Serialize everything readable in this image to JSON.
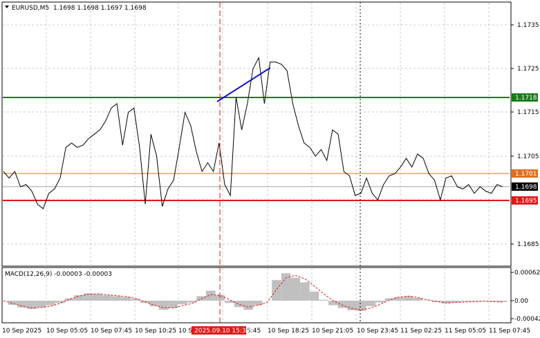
{
  "header": {
    "symbol": "EURUSD,M5",
    "ohlc": "1.1698 1.1698 1.1697 1.1698",
    "dropdown_icon": "triangle-down-icon"
  },
  "indicator": {
    "title": "MACD(12,26,9) -0.00003 -0.00003",
    "axis_labels": [
      "0.00062",
      "0.00",
      "-0.00042"
    ]
  },
  "price_axis": {
    "labels": [
      "1.1735",
      "1.1725",
      "1.1715",
      "1.1705",
      "1.1685"
    ]
  },
  "levels": [
    {
      "label": "1.1718",
      "color": "#1a7a1a"
    },
    {
      "label": "1.1701",
      "color": "#e07020"
    },
    {
      "label": "1.1698",
      "color": "#000000"
    },
    {
      "label": "1.1695",
      "color": "#e01818"
    }
  ],
  "time_axis": {
    "labels": [
      "10 Sep 2025",
      "10 Sep 05:05",
      "10 Sep 07:45",
      "10 Sep 10:25",
      "10 S",
      "5:45",
      "10 Sep 18:25",
      "10 Sep 21:05",
      "10 Sep 23:45",
      "11 Sep 02:25",
      "11 Sep 05:05",
      "11 Sep 07:45"
    ],
    "highlight": "2025.09.10 15:30"
  },
  "colors": {
    "green_level": "#1a7a1a",
    "orange_level": "#e07020",
    "red_level": "#e01818",
    "trendline": "#1010c8",
    "crosshair": "#e01818",
    "macd_hist": "#c0c0c0",
    "macd_signal": "#e01818"
  },
  "chart_data": {
    "type": "line",
    "series": [
      {
        "values": [
          1.17015,
          1.17,
          1.17015,
          1.1698,
          1.16985,
          1.1697,
          1.1694,
          1.1693,
          1.16965,
          1.16975,
          1.17,
          1.1707,
          1.1708,
          1.1707,
          1.17075,
          1.1709,
          1.171,
          1.1711,
          1.1713,
          1.1716,
          1.1717,
          1.17075,
          1.1715,
          1.1716,
          1.1707,
          1.1694,
          1.171,
          1.1705,
          1.16935,
          1.16975,
          1.16995,
          1.1707,
          1.1715,
          1.1712,
          1.1706,
          1.17015,
          1.17035,
          1.17015,
          1.1708,
          1.16985,
          1.1696,
          1.17185,
          1.1711,
          1.1717,
          1.1725,
          1.17275,
          1.1717,
          1.17265,
          1.17265,
          1.1726,
          1.17245,
          1.1717,
          1.1712,
          1.1708,
          1.1707,
          1.1705,
          1.17065,
          1.1704,
          1.1711,
          1.171,
          1.17015,
          1.17005,
          1.1696,
          1.16965,
          1.17,
          1.16965,
          1.1695,
          1.16985,
          1.17005,
          1.1701,
          1.17025,
          1.17045,
          1.17025,
          1.17055,
          1.17045,
          1.1701,
          1.16995,
          1.1695,
          1.17,
          1.17005,
          1.1698,
          1.16975,
          1.16985,
          1.16965,
          1.1698,
          1.1697,
          1.16965,
          1.16985,
          1.1698
        ]
      }
    ]
  },
  "macd_data": {
    "hist": [
      0,
      -9e-05,
      -0.00015,
      -0.00018,
      -0.00015,
      -0.0001,
      -5e-05,
      5e-05,
      0.00012,
      0.00016,
      0.00015,
      0.00012,
      0.0001,
      8e-05,
      4e-05,
      -5e-05,
      -0.00012,
      -0.0002,
      -0.00016,
      -8e-05,
      -4e-05,
      0.0001,
      0.00022,
      0.00012,
      -5e-05,
      -0.00014,
      -0.0002,
      -0.0001,
      0,
      0.00045,
      0.0006,
      0.0005,
      0.0004,
      0.0002,
      2e-05,
      -0.0001,
      -0.00016,
      -0.00021,
      -0.00022,
      -0.00012,
      -4e-05,
      5e-05,
      8e-05,
      0.0001,
      6e-05,
      1e-05,
      -3e-05,
      -6e-05,
      -4e-05,
      -2e-05,
      -2e-05,
      -1e-05,
      -2e-05,
      -3e-05
    ],
    "signal": [
      0,
      -6e-05,
      -0.00012,
      -0.00016,
      -0.00015,
      -0.00012,
      -6e-05,
      3e-05,
      0.0001,
      0.00014,
      0.00015,
      0.00013,
      0.00011,
      9e-05,
      5e-05,
      -2e-05,
      -0.0001,
      -0.00015,
      -0.00016,
      -0.00011,
      -6e-05,
      4e-05,
      0.00013,
      0.00012,
      2e-05,
      -8e-05,
      -0.00014,
      -0.0001,
      -4e-05,
      0.00025,
      0.0005,
      0.00055,
      0.00048,
      0.00032,
      0.00015,
      0,
      -0.0001,
      -0.00017,
      -0.0002,
      -0.00016,
      -8e-05,
      2e-05,
      8e-05,
      0.0001,
      7e-05,
      2e-05,
      -2e-05,
      -5e-05,
      -4e-05,
      -3e-05,
      -2e-05,
      -1e-05,
      -2e-05,
      -3e-05
    ]
  }
}
